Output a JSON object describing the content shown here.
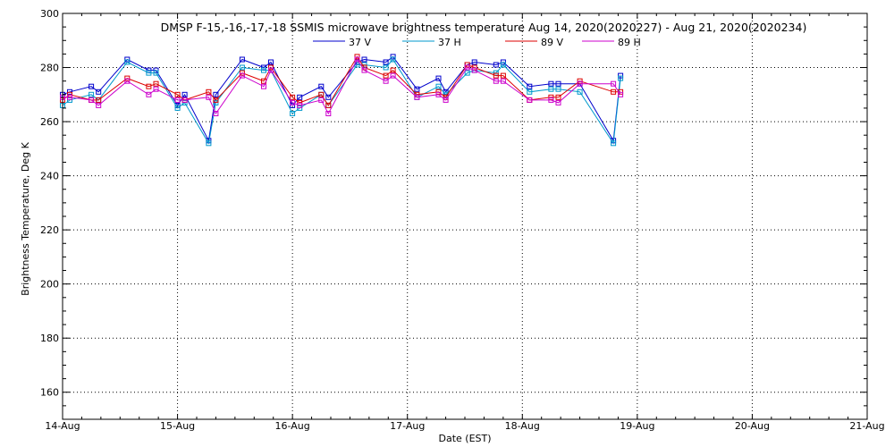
{
  "chart_data": {
    "type": "line",
    "title": "DMSP F-15,-16,-17,-18 SSMIS microwave brightness temperature Aug 14, 2020(2020227) - Aug 21, 2020(2020234)",
    "xlabel": "Date (EST)",
    "ylabel": "Brightness Temperature, Deg K",
    "xlim": [
      "2020-08-14",
      "2020-08-21"
    ],
    "ylim": [
      150,
      300
    ],
    "x_ticks": [
      "14-Aug",
      "15-Aug",
      "16-Aug",
      "17-Aug",
      "18-Aug",
      "19-Aug",
      "20-Aug",
      "21-Aug"
    ],
    "y_ticks": [
      160,
      180,
      200,
      220,
      240,
      260,
      280,
      300
    ],
    "grid": true,
    "legend_position": "top",
    "series": [
      {
        "name": "37 V",
        "color": "#0000cc",
        "points": [
          {
            "x": "2020-08-14 00:00",
            "y": 270
          },
          {
            "x": "2020-08-14 01:30",
            "y": 271
          },
          {
            "x": "2020-08-14 06:00",
            "y": 273
          },
          {
            "x": "2020-08-14 07:30",
            "y": 271
          },
          {
            "x": "2020-08-14 13:30",
            "y": 283
          },
          {
            "x": "2020-08-14 18:00",
            "y": 279
          },
          {
            "x": "2020-08-14 19:30",
            "y": 279
          },
          {
            "x": "2020-08-15 00:00",
            "y": 266
          },
          {
            "x": "2020-08-15 01:30",
            "y": 270
          },
          {
            "x": "2020-08-15 06:30",
            "y": 253
          },
          {
            "x": "2020-08-15 08:00",
            "y": 270
          },
          {
            "x": "2020-08-15 13:30",
            "y": 283
          },
          {
            "x": "2020-08-15 18:00",
            "y": 280
          },
          {
            "x": "2020-08-15 19:30",
            "y": 282
          },
          {
            "x": "2020-08-16 00:00",
            "y": 266
          },
          {
            "x": "2020-08-16 01:30",
            "y": 269
          },
          {
            "x": "2020-08-16 06:00",
            "y": 273
          },
          {
            "x": "2020-08-16 07:30",
            "y": 269
          },
          {
            "x": "2020-08-16 13:30",
            "y": 282
          },
          {
            "x": "2020-08-16 15:00",
            "y": 283
          },
          {
            "x": "2020-08-16 19:30",
            "y": 282
          },
          {
            "x": "2020-08-16 21:00",
            "y": 284
          },
          {
            "x": "2020-08-17 02:00",
            "y": 272
          },
          {
            "x": "2020-08-17 06:30",
            "y": 276
          },
          {
            "x": "2020-08-17 08:00",
            "y": 271
          },
          {
            "x": "2020-08-17 12:30",
            "y": 281
          },
          {
            "x": "2020-08-17 14:00",
            "y": 282
          },
          {
            "x": "2020-08-17 18:30",
            "y": 281
          },
          {
            "x": "2020-08-17 20:00",
            "y": 282
          },
          {
            "x": "2020-08-18 01:30",
            "y": 273
          },
          {
            "x": "2020-08-18 06:00",
            "y": 274
          },
          {
            "x": "2020-08-18 07:30",
            "y": 274
          },
          {
            "x": "2020-08-18 12:00",
            "y": 274
          },
          {
            "x": "2020-08-18 19:00",
            "y": 253
          },
          {
            "x": "2020-08-18 20:30",
            "y": 277
          }
        ]
      },
      {
        "name": "37 H",
        "color": "#0099cc",
        "points": [
          {
            "x": "2020-08-14 00:00",
            "y": 266
          },
          {
            "x": "2020-08-14 01:30",
            "y": 268
          },
          {
            "x": "2020-08-14 06:00",
            "y": 270
          },
          {
            "x": "2020-08-14 07:30",
            "y": 268
          },
          {
            "x": "2020-08-14 13:30",
            "y": 282
          },
          {
            "x": "2020-08-14 18:00",
            "y": 278
          },
          {
            "x": "2020-08-14 19:30",
            "y": 278
          },
          {
            "x": "2020-08-15 00:00",
            "y": 265
          },
          {
            "x": "2020-08-15 01:30",
            "y": 267
          },
          {
            "x": "2020-08-15 06:30",
            "y": 252
          },
          {
            "x": "2020-08-15 08:00",
            "y": 267
          },
          {
            "x": "2020-08-15 13:30",
            "y": 280
          },
          {
            "x": "2020-08-15 18:00",
            "y": 279
          },
          {
            "x": "2020-08-15 19:30",
            "y": 279
          },
          {
            "x": "2020-08-16 00:00",
            "y": 263
          },
          {
            "x": "2020-08-16 01:30",
            "y": 265
          },
          {
            "x": "2020-08-16 06:00",
            "y": 270
          },
          {
            "x": "2020-08-16 07:30",
            "y": 266
          },
          {
            "x": "2020-08-16 13:30",
            "y": 281
          },
          {
            "x": "2020-08-16 15:00",
            "y": 281
          },
          {
            "x": "2020-08-16 19:30",
            "y": 280
          },
          {
            "x": "2020-08-16 21:00",
            "y": 283
          },
          {
            "x": "2020-08-17 02:00",
            "y": 269
          },
          {
            "x": "2020-08-17 06:30",
            "y": 273
          },
          {
            "x": "2020-08-17 08:00",
            "y": 270
          },
          {
            "x": "2020-08-17 12:30",
            "y": 278
          },
          {
            "x": "2020-08-17 14:00",
            "y": 279
          },
          {
            "x": "2020-08-17 18:30",
            "y": 278
          },
          {
            "x": "2020-08-17 20:00",
            "y": 281
          },
          {
            "x": "2020-08-18 01:30",
            "y": 271
          },
          {
            "x": "2020-08-18 06:00",
            "y": 272
          },
          {
            "x": "2020-08-18 07:30",
            "y": 272
          },
          {
            "x": "2020-08-18 12:00",
            "y": 271
          },
          {
            "x": "2020-08-18 19:00",
            "y": 252
          },
          {
            "x": "2020-08-18 20:30",
            "y": 276
          }
        ]
      },
      {
        "name": "89 V",
        "color": "#dd0000",
        "points": [
          {
            "x": "2020-08-14 00:00",
            "y": 268
          },
          {
            "x": "2020-08-14 01:30",
            "y": 270
          },
          {
            "x": "2020-08-14 06:00",
            "y": 268
          },
          {
            "x": "2020-08-14 07:30",
            "y": 268
          },
          {
            "x": "2020-08-14 13:30",
            "y": 276
          },
          {
            "x": "2020-08-14 18:00",
            "y": 273
          },
          {
            "x": "2020-08-14 19:30",
            "y": 274
          },
          {
            "x": "2020-08-15 00:00",
            "y": 270
          },
          {
            "x": "2020-08-15 01:30",
            "y": 268
          },
          {
            "x": "2020-08-15 06:30",
            "y": 271
          },
          {
            "x": "2020-08-15 08:00",
            "y": 268
          },
          {
            "x": "2020-08-15 13:30",
            "y": 278
          },
          {
            "x": "2020-08-15 18:00",
            "y": 275
          },
          {
            "x": "2020-08-15 19:30",
            "y": 280
          },
          {
            "x": "2020-08-16 00:00",
            "y": 269
          },
          {
            "x": "2020-08-16 01:30",
            "y": 267
          },
          {
            "x": "2020-08-16 06:00",
            "y": 270
          },
          {
            "x": "2020-08-16 07:30",
            "y": 266
          },
          {
            "x": "2020-08-16 13:30",
            "y": 284
          },
          {
            "x": "2020-08-16 15:00",
            "y": 280
          },
          {
            "x": "2020-08-16 19:30",
            "y": 277
          },
          {
            "x": "2020-08-16 21:00",
            "y": 279
          },
          {
            "x": "2020-08-17 02:00",
            "y": 270
          },
          {
            "x": "2020-08-17 06:30",
            "y": 271
          },
          {
            "x": "2020-08-17 08:00",
            "y": 269
          },
          {
            "x": "2020-08-17 12:30",
            "y": 281
          },
          {
            "x": "2020-08-17 14:00",
            "y": 280
          },
          {
            "x": "2020-08-17 18:30",
            "y": 277
          },
          {
            "x": "2020-08-17 20:00",
            "y": 277
          },
          {
            "x": "2020-08-18 01:30",
            "y": 268
          },
          {
            "x": "2020-08-18 06:00",
            "y": 269
          },
          {
            "x": "2020-08-18 07:30",
            "y": 269
          },
          {
            "x": "2020-08-18 12:00",
            "y": 275
          },
          {
            "x": "2020-08-18 19:00",
            "y": 271
          },
          {
            "x": "2020-08-18 20:30",
            "y": 271
          }
        ]
      },
      {
        "name": "89 H",
        "color": "#cc00cc",
        "points": [
          {
            "x": "2020-08-14 00:00",
            "y": 269
          },
          {
            "x": "2020-08-14 01:30",
            "y": 269
          },
          {
            "x": "2020-08-14 06:00",
            "y": 268
          },
          {
            "x": "2020-08-14 07:30",
            "y": 266
          },
          {
            "x": "2020-08-14 13:30",
            "y": 275
          },
          {
            "x": "2020-08-14 18:00",
            "y": 270
          },
          {
            "x": "2020-08-14 19:30",
            "y": 272
          },
          {
            "x": "2020-08-15 00:00",
            "y": 268
          },
          {
            "x": "2020-08-15 01:30",
            "y": 268
          },
          {
            "x": "2020-08-15 06:30",
            "y": 269
          },
          {
            "x": "2020-08-15 08:00",
            "y": 263
          },
          {
            "x": "2020-08-15 13:30",
            "y": 277
          },
          {
            "x": "2020-08-15 18:00",
            "y": 273
          },
          {
            "x": "2020-08-15 19:30",
            "y": 279
          },
          {
            "x": "2020-08-16 00:00",
            "y": 267
          },
          {
            "x": "2020-08-16 01:30",
            "y": 266
          },
          {
            "x": "2020-08-16 06:00",
            "y": 268
          },
          {
            "x": "2020-08-16 07:30",
            "y": 263
          },
          {
            "x": "2020-08-16 13:30",
            "y": 283
          },
          {
            "x": "2020-08-16 15:00",
            "y": 279
          },
          {
            "x": "2020-08-16 19:30",
            "y": 275
          },
          {
            "x": "2020-08-16 21:00",
            "y": 277
          },
          {
            "x": "2020-08-17 02:00",
            "y": 269
          },
          {
            "x": "2020-08-17 06:30",
            "y": 270
          },
          {
            "x": "2020-08-17 08:00",
            "y": 268
          },
          {
            "x": "2020-08-17 12:30",
            "y": 280
          },
          {
            "x": "2020-08-17 14:00",
            "y": 279
          },
          {
            "x": "2020-08-17 18:30",
            "y": 275
          },
          {
            "x": "2020-08-17 20:00",
            "y": 275
          },
          {
            "x": "2020-08-18 01:30",
            "y": 268
          },
          {
            "x": "2020-08-18 06:00",
            "y": 268
          },
          {
            "x": "2020-08-18 07:30",
            "y": 267
          },
          {
            "x": "2020-08-18 12:00",
            "y": 274
          },
          {
            "x": "2020-08-18 19:00",
            "y": 274
          },
          {
            "x": "2020-08-18 20:30",
            "y": 270
          }
        ]
      }
    ]
  }
}
